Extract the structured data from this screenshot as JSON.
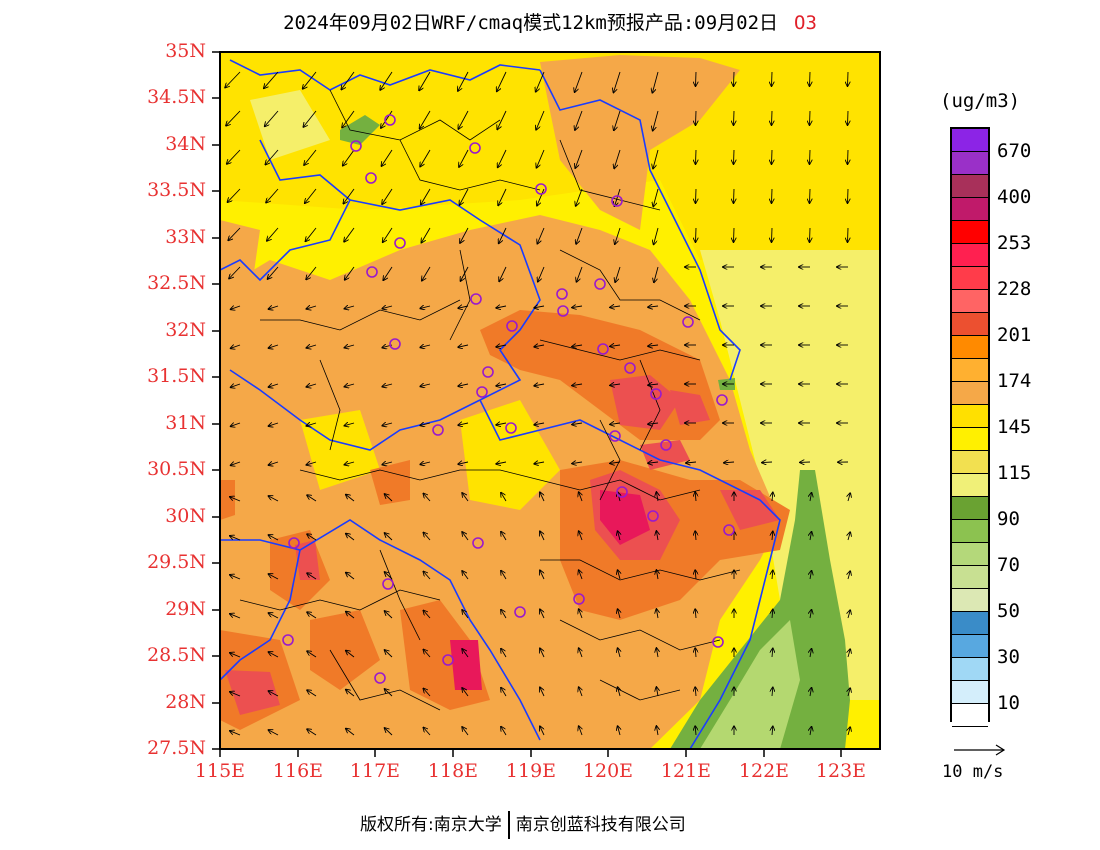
{
  "title": {
    "main": "2024年09月02日WRF/cmaq模式12km预报产品:09月02日",
    "species": "O3"
  },
  "map": {
    "lat_ticks": [
      "35N",
      "34.5N",
      "34N",
      "33.5N",
      "33N",
      "32.5N",
      "32N",
      "31.5N",
      "31N",
      "30.5N",
      "30N",
      "29.5N",
      "29N",
      "28.5N",
      "28N",
      "27.5N"
    ],
    "lon_ticks": [
      "115E",
      "116E",
      "117E",
      "118E",
      "119E",
      "120E",
      "121E",
      "122E",
      "123E"
    ],
    "lat_range": [
      27.5,
      35
    ],
    "lon_range": [
      115,
      123.5
    ],
    "field_colors": {
      "above_110": "#fff000",
      "above_145": "#ffe300",
      "above_174": "#f5a848",
      "above_201": "#f07a28",
      "above_228": "#ec5050",
      "above_253": "#e8185a",
      "below_90": "#74b040",
      "below_70": "#b4d870",
      "boundary_province": "#1a3cff",
      "boundary_city": "#000000",
      "station_marker": "#9a1acc"
    },
    "wind_description": "vector arrows every 0.5 deg"
  },
  "colorbar": {
    "units": "(ug/m3)",
    "colors": [
      "#8c24e6",
      "#9a30c8",
      "#a8305a",
      "#c01a6a",
      "#ff0000",
      "#ff2050",
      "#ff3c4a",
      "#ff6464",
      "#ec5030",
      "#ff8a00",
      "#ffb030",
      "#f5a848",
      "#ffe000",
      "#fff000",
      "#f2e050",
      "#f0f078",
      "#6aa232",
      "#8cc250",
      "#b4d87a",
      "#c8e092",
      "#dce8b4",
      "#3a8cc8",
      "#58a8e0",
      "#a0d8f5",
      "#d4eefb",
      "#ffffff"
    ],
    "labels": [
      "670",
      "400",
      "253",
      "228",
      "201",
      "174",
      "145",
      "115",
      "90",
      "70",
      "50",
      "30",
      "10"
    ]
  },
  "vector_reference": {
    "label": "10 m/s"
  },
  "footer": {
    "left": "版权所有:南京大学",
    "right": "南京创蓝科技有限公司"
  }
}
